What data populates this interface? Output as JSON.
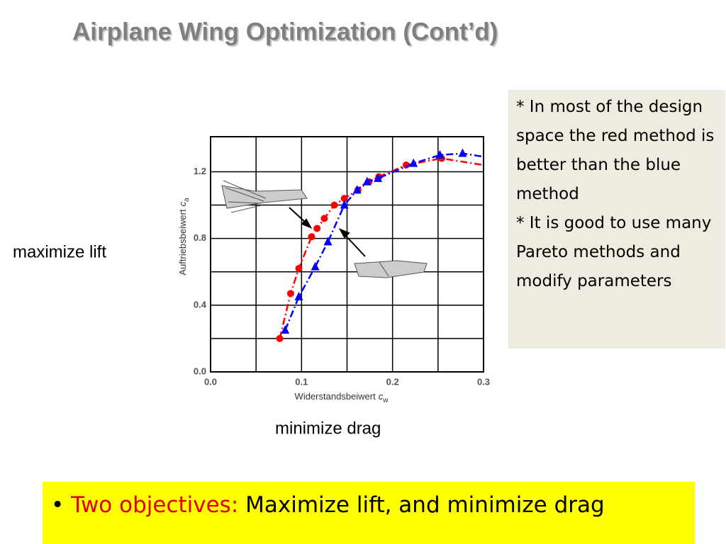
{
  "title": "Airplane Wing Optimization (Cont’d)",
  "left_label": "maximize lift",
  "bottom_label": "minimize drag",
  "note": [
    "* In most of the design space the red method is better than the blue method",
    "* It is good to use many Pareto methods and modify parameters"
  ],
  "bullet": {
    "lead": "Two objectives:",
    "text": "Maximize lift, and minimize drag"
  },
  "chart_data": {
    "type": "line",
    "xlabel": "Widerstandsbeiwert",
    "xlabel_symbol": "c",
    "xlabel_subscript": "w",
    "ylabel": "Auftriebsbeiwert",
    "ylabel_symbol": "c",
    "ylabel_subscript": "a",
    "xlim": [
      0,
      0.3
    ],
    "ylim": [
      0,
      1.41
    ],
    "xticks": [
      {
        "value": 0,
        "label": "0.0"
      },
      0.1,
      0.2,
      0.3
    ],
    "yticks": [
      {
        "value": 0,
        "label": "0.0"
      },
      0.4,
      0.8,
      1.2
    ],
    "x_minor_grid": [
      0.05,
      0.15,
      0.25
    ],
    "y_minor_grid": [
      0.2,
      0.6,
      1.0
    ],
    "grid": true,
    "series": [
      {
        "color": "#ff0000",
        "marker": "circle",
        "dash": "dashdot",
        "x": [
          0.076,
          0.088,
          0.097,
          0.111,
          0.117,
          0.125,
          0.136,
          0.147,
          0.162,
          0.174,
          0.185,
          0.215,
          0.254,
          0.3
        ],
        "values": [
          0.2,
          0.47,
          0.62,
          0.81,
          0.86,
          0.92,
          1.0,
          1.04,
          1.09,
          1.14,
          1.17,
          1.24,
          1.28,
          1.24
        ],
        "marked": 13
      },
      {
        "color": "#0000ff",
        "marker": "triangle",
        "dash": "dashdot",
        "x": [
          0.082,
          0.097,
          0.115,
          0.129,
          0.147,
          0.161,
          0.172,
          0.184,
          0.223,
          0.252,
          0.277,
          0.3
        ],
        "values": [
          0.25,
          0.45,
          0.63,
          0.78,
          1.0,
          1.09,
          1.14,
          1.16,
          1.25,
          1.3,
          1.31,
          1.29
        ],
        "marked": 11
      }
    ]
  }
}
